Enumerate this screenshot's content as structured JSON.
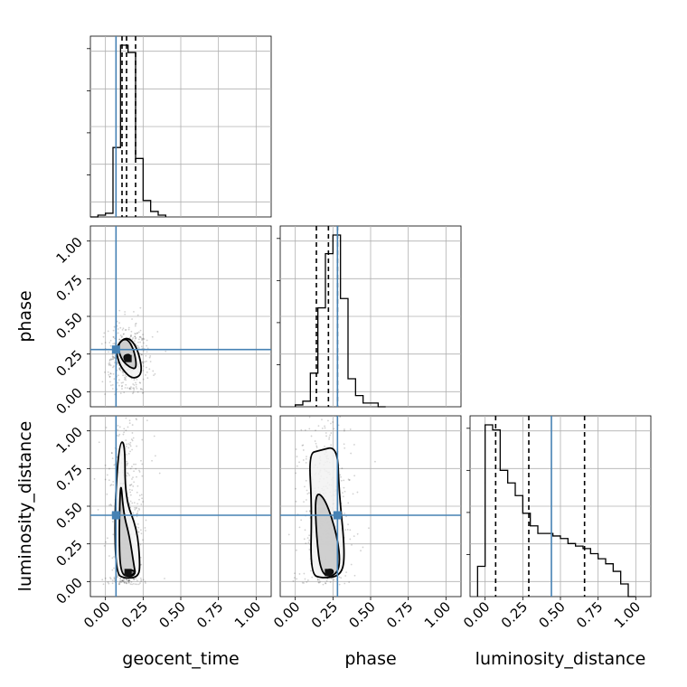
{
  "chart_data": {
    "type": "corner",
    "parameters": [
      "geocent_time",
      "phase",
      "luminosity_distance"
    ],
    "truths": {
      "geocent_time": 0.07,
      "phase": 0.28,
      "luminosity_distance": 0.44
    },
    "truth_color": "#4682b4",
    "axis_limits": [
      -0.1,
      1.1
    ],
    "ticks": [
      0.0,
      0.25,
      0.5,
      0.75,
      1.0
    ],
    "tick_labels": [
      "0.00",
      "0.25",
      "0.50",
      "0.75",
      "1.00"
    ],
    "grid": true,
    "marginals": {
      "geocent_time": {
        "quantiles": [
          0.11,
          0.14,
          0.2
        ],
        "bins": [
          -0.1,
          -0.05,
          0.0,
          0.05,
          0.1,
          0.15,
          0.2,
          0.25,
          0.3,
          0.35,
          0.4
        ],
        "values": [
          0,
          0.01,
          0.02,
          0.38,
          0.94,
          0.9,
          0.32,
          0.09,
          0.03,
          0.01
        ]
      },
      "phase": {
        "quantiles": [
          0.14,
          0.22,
          0.28
        ],
        "bins": [
          0.0,
          0.05,
          0.1,
          0.15,
          0.2,
          0.25,
          0.3,
          0.35,
          0.4,
          0.45,
          0.5,
          0.55,
          0.6
        ],
        "values": [
          0.01,
          0.03,
          0.18,
          0.53,
          0.82,
          0.92,
          0.58,
          0.15,
          0.06,
          0.02,
          0.02,
          0
        ]
      },
      "luminosity_distance": {
        "quantiles": [
          0.07,
          0.29,
          0.66
        ],
        "bins": [
          -0.05,
          0.0,
          0.05,
          0.1,
          0.15,
          0.2,
          0.25,
          0.3,
          0.35,
          0.4,
          0.45,
          0.5,
          0.55,
          0.6,
          0.65,
          0.7,
          0.75,
          0.8,
          0.85,
          0.9,
          0.95,
          1.0
        ],
        "values": [
          0.12,
          0.68,
          0.66,
          0.5,
          0.45,
          0.4,
          0.33,
          0.28,
          0.25,
          0.25,
          0.24,
          0.23,
          0.21,
          0.2,
          0.19,
          0.17,
          0.15,
          0.13,
          0.1,
          0.05,
          0
        ]
      }
    },
    "pairs": [
      {
        "x": "geocent_time",
        "y": "phase",
        "center": [
          0.15,
          0.22
        ],
        "contours": [
          [
            [
              0.13,
              0.2
            ],
            [
              0.17,
              0.22
            ],
            [
              0.16,
              0.25
            ],
            [
              0.12,
              0.24
            ]
          ],
          [
            [
              0.08,
              0.32
            ],
            [
              0.14,
              0.36
            ],
            [
              0.19,
              0.28
            ],
            [
              0.21,
              0.15
            ],
            [
              0.16,
              0.16
            ],
            [
              0.1,
              0.22
            ]
          ],
          [
            [
              0.07,
              0.3
            ],
            [
              0.14,
              0.37
            ],
            [
              0.21,
              0.3
            ],
            [
              0.25,
              0.12
            ],
            [
              0.18,
              0.08
            ],
            [
              0.11,
              0.15
            ],
            [
              0.08,
              0.22
            ]
          ]
        ]
      },
      {
        "x": "geocent_time",
        "y": "luminosity_distance",
        "center": [
          0.15,
          0.06
        ],
        "contours": [
          [
            [
              0.12,
              0.04
            ],
            [
              0.18,
              0.04
            ],
            [
              0.2,
              0.07
            ],
            [
              0.15,
              0.08
            ]
          ],
          [
            [
              0.1,
              0.7
            ],
            [
              0.12,
              0.45
            ],
            [
              0.16,
              0.3
            ],
            [
              0.19,
              0.1
            ],
            [
              0.2,
              0.05
            ],
            [
              0.16,
              0.03
            ],
            [
              0.1,
              0.05
            ],
            [
              0.09,
              0.3
            ]
          ],
          [
            [
              0.09,
              0.92
            ],
            [
              0.13,
              0.93
            ],
            [
              0.13,
              0.55
            ],
            [
              0.21,
              0.35
            ],
            [
              0.23,
              0.12
            ],
            [
              0.22,
              0.03
            ],
            [
              0.13,
              0.02
            ],
            [
              0.07,
              0.05
            ],
            [
              0.06,
              0.45
            ]
          ]
        ]
      },
      {
        "x": "phase",
        "y": "luminosity_distance",
        "center": [
          0.22,
          0.06
        ],
        "contours": [
          [
            [
              0.2,
              0.05
            ],
            [
              0.25,
              0.05
            ],
            [
              0.25,
              0.08
            ],
            [
              0.21,
              0.08
            ]
          ],
          [
            [
              0.13,
              0.6
            ],
            [
              0.2,
              0.55
            ],
            [
              0.28,
              0.3
            ],
            [
              0.3,
              0.1
            ],
            [
              0.25,
              0.03
            ],
            [
              0.17,
              0.05
            ],
            [
              0.14,
              0.3
            ]
          ],
          [
            [
              0.09,
              0.85
            ],
            [
              0.16,
              0.87
            ],
            [
              0.28,
              0.9
            ],
            [
              0.29,
              0.6
            ],
            [
              0.33,
              0.2
            ],
            [
              0.31,
              0.04
            ],
            [
              0.18,
              0.02
            ],
            [
              0.1,
              0.05
            ],
            [
              0.11,
              0.5
            ]
          ]
        ]
      }
    ]
  }
}
